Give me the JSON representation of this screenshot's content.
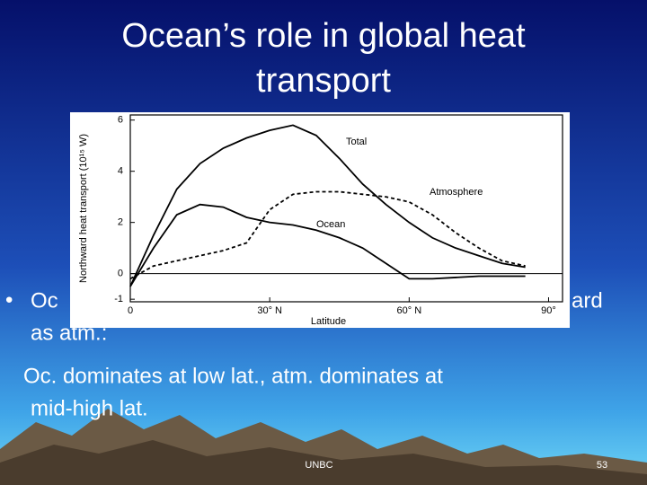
{
  "slide": {
    "title_lines": [
      "Ocean’s role in global heat",
      "transport"
    ],
    "bullet_fragments": [
      "Oc",
      "ard",
      "as atm.:"
    ],
    "body_lines": [
      "Oc. dominates at low lat., atm. dominates at",
      "mid-high lat."
    ],
    "footer": "UNBC",
    "page_number": "53"
  },
  "chart_data": {
    "type": "line",
    "x_label": "Latitude",
    "y_label": "Northward heat transport (10¹⁵ W)",
    "x": [
      0,
      5,
      10,
      15,
      20,
      25,
      30,
      35,
      40,
      45,
      50,
      55,
      60,
      65,
      70,
      75,
      80,
      85
    ],
    "series": [
      {
        "name": "Total",
        "color": "#000000",
        "dash": "solid",
        "values": [
          -0.5,
          1.5,
          3.3,
          4.3,
          4.9,
          5.3,
          5.6,
          5.8,
          5.4,
          4.5,
          3.5,
          2.7,
          2.0,
          1.4,
          1.0,
          0.7,
          0.4,
          0.25
        ]
      },
      {
        "name": "Atmosphere",
        "color": "#000000",
        "dash": "dashed",
        "values": [
          -0.2,
          0.3,
          0.5,
          0.7,
          0.9,
          1.2,
          2.5,
          3.1,
          3.2,
          3.2,
          3.1,
          3.0,
          2.8,
          2.3,
          1.6,
          1.0,
          0.5,
          0.3
        ]
      },
      {
        "name": "Ocean",
        "color": "#000000",
        "dash": "solid",
        "values": [
          -0.5,
          1.0,
          2.3,
          2.7,
          2.6,
          2.2,
          2.0,
          1.9,
          1.7,
          1.4,
          1.0,
          0.4,
          -0.2,
          -0.2,
          -0.15,
          -0.1,
          -0.1,
          -0.1
        ]
      }
    ],
    "xlim": [
      0,
      93
    ],
    "ylim": [
      -1.1,
      6.2
    ],
    "xticks": [
      0,
      {
        "value": 30,
        "label": "30° N"
      },
      {
        "value": 60,
        "label": "60° N"
      },
      {
        "value": 90,
        "label": "90°"
      }
    ],
    "yticks": [
      -1,
      0,
      2,
      4,
      6
    ],
    "zero_line": true
  }
}
